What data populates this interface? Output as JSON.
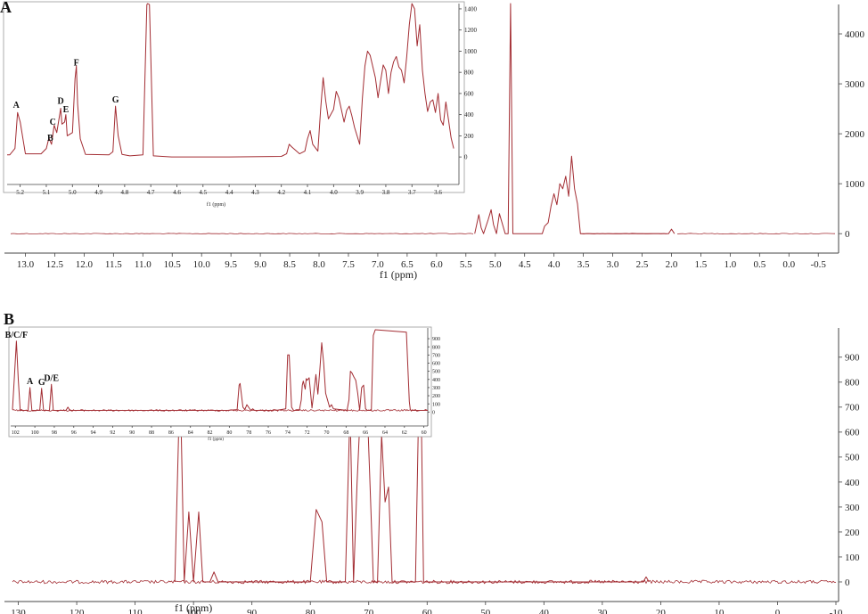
{
  "figure": {
    "panels": [
      "A",
      "B"
    ],
    "spectrum_color": "#a32d33",
    "axis_color": "#444444"
  },
  "chart_data": [
    {
      "panel": "A",
      "type": "line",
      "xlabel": "f1 (ppm)",
      "xlim": [
        13.25,
        -0.8
      ],
      "ylim": [
        -300,
        4500
      ],
      "x_ticks": [
        "13.0",
        "12.5",
        "12.0",
        "11.5",
        "11.0",
        "10.5",
        "10.0",
        "9.5",
        "9.0",
        "8.5",
        "8.0",
        "7.5",
        "7.0",
        "6.5",
        "6.0",
        "5.5",
        "5.0",
        "4.5",
        "4.0",
        "3.5",
        "3.0",
        "2.5",
        "2.0",
        "1.5",
        "1.0",
        "0.5",
        "0.0",
        "-0.5"
      ],
      "y_ticks": [
        "0",
        "1000",
        "2000",
        "3000",
        "4000"
      ],
      "series": [
        {
          "x": [
            5.35,
            5.28,
            5.24,
            5.2,
            5.12,
            5.07,
            5.03,
            4.98,
            4.93,
            4.83,
            4.78,
            4.74,
            4.7,
            4.66,
            4.2,
            4.16,
            4.1,
            4.05,
            4.0,
            3.95,
            3.9,
            3.85,
            3.8,
            3.75,
            3.7,
            3.65,
            3.6,
            3.55,
            2.05,
            2.0,
            1.95
          ],
          "y": [
            0,
            380,
            120,
            0,
            280,
            480,
            180,
            0,
            400,
            0,
            0,
            4700,
            0,
            0,
            0,
            150,
            220,
            550,
            800,
            580,
            1000,
            900,
            1150,
            750,
            1550,
            900,
            600,
            0,
            0,
            90,
            0
          ]
        }
      ],
      "inset": {
        "xlabel": "f1 (ppm)",
        "xlim": [
          5.25,
          3.52
        ],
        "ylim": [
          -100,
          1450
        ],
        "x_ticks": [
          "5.2",
          "5.1",
          "5.0",
          "4.9",
          "4.8",
          "4.7",
          "4.6",
          "4.5",
          "4.4",
          "4.3",
          "4.2",
          "4.1",
          "4.0",
          "3.9",
          "3.8",
          "3.7",
          "3.6"
        ],
        "y_ticks": [
          "0",
          "200",
          "400",
          "600",
          "800",
          "1000",
          "1200",
          "1400"
        ],
        "peak_labels": [
          {
            "label": "A",
            "x": 5.215,
            "y": 430
          },
          {
            "label": "B",
            "x": 5.085,
            "y": 120
          },
          {
            "label": "C",
            "x": 5.075,
            "y": 270
          },
          {
            "label": "D",
            "x": 5.045,
            "y": 470
          },
          {
            "label": "E",
            "x": 5.025,
            "y": 390
          },
          {
            "label": "F",
            "x": 4.985,
            "y": 830
          },
          {
            "label": "G",
            "x": 4.835,
            "y": 480
          }
        ],
        "series": [
          {
            "x": [
              5.25,
              5.24,
              5.22,
              5.21,
              5.2,
              5.18,
              5.12,
              5.1,
              5.09,
              5.08,
              5.07,
              5.06,
              5.05,
              5.045,
              5.04,
              5.03,
              5.025,
              5.02,
              5.0,
              4.99,
              4.985,
              4.98,
              4.97,
              4.95,
              4.86,
              4.845,
              4.835,
              4.825,
              4.81,
              4.78,
              4.73,
              4.715,
              4.712,
              4.705,
              4.69,
              4.62,
              4.4,
              4.2,
              4.18,
              4.17,
              4.16,
              4.13,
              4.11,
              4.1,
              4.09,
              4.08,
              4.06,
              4.05,
              4.04,
              4.03,
              4.02,
              4.0,
              3.99,
              3.98,
              3.96,
              3.95,
              3.94,
              3.93,
              3.92,
              3.9,
              3.89,
              3.88,
              3.87,
              3.86,
              3.84,
              3.83,
              3.82,
              3.81,
              3.8,
              3.79,
              3.78,
              3.77,
              3.76,
              3.75,
              3.74,
              3.73,
              3.72,
              3.71,
              3.7,
              3.69,
              3.68,
              3.67,
              3.66,
              3.65,
              3.64,
              3.63,
              3.62,
              3.61,
              3.6,
              3.59,
              3.58,
              3.57,
              3.56,
              3.55,
              3.54
            ],
            "y": [
              20,
              20,
              80,
              420,
              330,
              30,
              30,
              80,
              180,
              120,
              300,
              230,
              380,
              460,
              310,
              330,
              400,
              200,
              230,
              740,
              860,
              500,
              170,
              25,
              20,
              50,
              480,
              200,
              25,
              10,
              20,
              1440,
              1480,
              1440,
              10,
              0,
              0,
              5,
              30,
              120,
              95,
              30,
              55,
              170,
              250,
              120,
              55,
              440,
              750,
              530,
              360,
              450,
              620,
              560,
              330,
              440,
              480,
              390,
              280,
              120,
              550,
              860,
              1000,
              960,
              750,
              560,
              720,
              870,
              820,
              600,
              800,
              900,
              950,
              850,
              820,
              700,
              950,
              1250,
              1480,
              1400,
              1050,
              1250,
              820,
              600,
              430,
              520,
              540,
              420,
              600,
              350,
              300,
              520,
              350,
              180,
              80
            ]
          }
        ]
      }
    },
    {
      "panel": "B",
      "type": "line",
      "xlabel": "f1 (ppm)",
      "xlim": [
        131,
        -10
      ],
      "ylim": [
        -50,
        1010
      ],
      "x_ticks": [
        "130",
        "120",
        "110",
        "100",
        "90",
        "80",
        "70",
        "60",
        "50",
        "40",
        "30",
        "20",
        "10",
        "0",
        "-10"
      ],
      "y_ticks": [
        "0",
        "100",
        "200",
        "300",
        "400",
        "500",
        "600",
        "700",
        "800",
        "900"
      ],
      "series": [
        {
          "x": [
            103.2,
            102.3,
            101.6,
            100.8,
            100.0,
            99.1,
            98.4,
            97.2,
            96.5,
            95.8,
            80.0,
            79.0,
            78.0,
            77.2,
            74.0,
            73.2,
            72.6,
            72.0,
            71.2,
            70.6,
            70.1,
            69.7,
            69.2,
            68.5,
            67.8,
            67.2,
            66.6,
            66.0,
            65.3,
            62.0,
            61.2,
            60.6,
            59.6,
            23.0,
            22.5,
            22.0
          ],
          "y": [
            0,
            830,
            0,
            280,
            0,
            280,
            0,
            0,
            40,
            0,
            0,
            290,
            240,
            0,
            0,
            700,
            0,
            390,
            810,
            850,
            600,
            340,
            0,
            0,
            590,
            320,
            380,
            0,
            0,
            0,
            1500,
            0,
            0,
            0,
            20,
            0
          ]
        }
      ],
      "inset": {
        "xlabel": "f1 (ppm)",
        "xlim": [
          102.3,
          59.6
        ],
        "ylim": [
          -40,
          1010
        ],
        "x_ticks": [
          "102",
          "100",
          "98",
          "96",
          "94",
          "92",
          "90",
          "88",
          "86",
          "84",
          "82",
          "80",
          "78",
          "76",
          "74",
          "72",
          "70",
          "68",
          "66",
          "64",
          "62",
          "60"
        ],
        "y_ticks": [
          "0",
          "100",
          "200",
          "300",
          "400",
          "500",
          "600",
          "700",
          "800",
          "900"
        ],
        "peak_labels": [
          {
            "label": "B/C/F",
            "x": 101.9,
            "y": 870
          },
          {
            "label": "A",
            "x": 100.5,
            "y": 300
          },
          {
            "label": "G",
            "x": 99.3,
            "y": 290
          },
          {
            "label": "D/E",
            "x": 98.3,
            "y": 340
          }
        ],
        "series": [
          {
            "x": [
              102.3,
              102.1,
              101.9,
              101.7,
              101.5,
              100.7,
              100.5,
              100.3,
              99.5,
              99.3,
              99.1,
              98.5,
              98.3,
              98.1,
              96.8,
              96.6,
              96.4,
              80.2,
              79.2,
              79.0,
              78.9,
              78.6,
              78.4,
              78.2,
              77.8,
              77.6,
              77.4,
              75.6,
              75.4,
              75.2,
              74.2,
              74.0,
              73.85,
              73.6,
              73.4,
              72.8,
              72.6,
              72.5,
              72.4,
              72.2,
              72.1,
              72.0,
              71.8,
              71.5,
              71.1,
              70.9,
              70.7,
              70.5,
              70.3,
              70.1,
              69.7,
              69.5,
              69.3,
              67.9,
              67.7,
              67.55,
              67.4,
              67.2,
              67.0,
              66.8,
              66.6,
              66.4,
              66.2,
              66.0,
              65.8,
              65.4,
              65.2,
              65.0,
              61.8,
              61.5,
              61.4,
              61.3,
              61.1,
              60.8,
              60.6,
              59.6
            ],
            "y": [
              30,
              440,
              870,
              400,
              20,
              20,
              300,
              20,
              20,
              290,
              20,
              20,
              340,
              20,
              20,
              60,
              20,
              20,
              30,
              330,
              350,
              60,
              30,
              90,
              20,
              40,
              20,
              20,
              30,
              20,
              40,
              700,
              700,
              60,
              20,
              20,
              150,
              330,
              380,
              280,
              410,
              390,
              420,
              50,
              460,
              220,
              520,
              850,
              600,
              230,
              60,
              90,
              40,
              20,
              150,
              500,
              480,
              430,
              390,
              230,
              20,
              300,
              330,
              40,
              20,
              20,
              940,
              1010,
              980,
              130,
              30,
              20,
              20,
              20,
              20,
              20
            ]
          }
        ]
      }
    }
  ]
}
